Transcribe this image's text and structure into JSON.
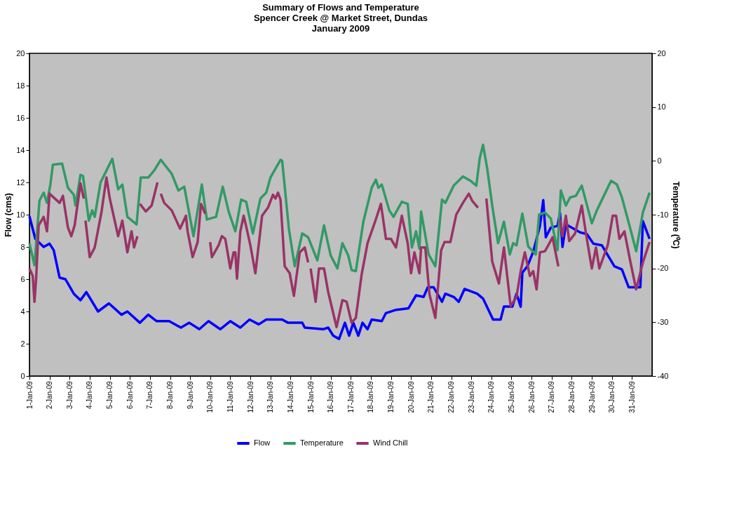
{
  "chart_data": {
    "type": "line",
    "title": [
      "Summary of Flows and Temperature",
      "Spencer Creek @ Market Street, Dundas",
      "January 2009"
    ],
    "ylabel": "Flow (cms)",
    "y2label": "Temperature (⁰C)",
    "xlim": [
      "2009-01-01",
      "2009-02-01"
    ],
    "xticks": [
      {
        "value": "2009-01-01",
        "label": "1-Jan-09"
      },
      {
        "value": "2009-01-02",
        "label": "2-Jan-09"
      },
      {
        "value": "2009-01-03",
        "label": "3-Jan-09"
      },
      {
        "value": "2009-01-04",
        "label": "4-Jan-09"
      },
      {
        "value": "2009-01-05",
        "label": "5-Jan-09"
      },
      {
        "value": "2009-01-06",
        "label": "6-Jan-09"
      },
      {
        "value": "2009-01-07",
        "label": "7-Jan-09"
      },
      {
        "value": "2009-01-08",
        "label": "8-Jan-09"
      },
      {
        "value": "2009-01-09",
        "label": "9-Jan-09"
      },
      {
        "value": "2009-01-10",
        "label": "10-Jan-09"
      },
      {
        "value": "2009-01-11",
        "label": "11-Jan-09"
      },
      {
        "value": "2009-01-12",
        "label": "12-Jan-09"
      },
      {
        "value": "2009-01-13",
        "label": "13-Jan-09"
      },
      {
        "value": "2009-01-14",
        "label": "14-Jan-09"
      },
      {
        "value": "2009-01-15",
        "label": "15-Jan-09"
      },
      {
        "value": "2009-01-16",
        "label": "16-Jan-09"
      },
      {
        "value": "2009-01-17",
        "label": "17-Jan-09"
      },
      {
        "value": "2009-01-18",
        "label": "18-Jan-09"
      },
      {
        "value": "2009-01-19",
        "label": "19-Jan-09"
      },
      {
        "value": "2009-01-20",
        "label": "20-Jan-09"
      },
      {
        "value": "2009-01-21",
        "label": "21-Jan-09"
      },
      {
        "value": "2009-01-22",
        "label": "22-Jan-09"
      },
      {
        "value": "2009-01-23",
        "label": "23-Jan-09"
      },
      {
        "value": "2009-01-24",
        "label": "24-Jan-09"
      },
      {
        "value": "2009-01-25",
        "label": "25-Jan-09"
      },
      {
        "value": "2009-01-26",
        "label": "26-Jan-09"
      },
      {
        "value": "2009-01-27",
        "label": "27-Jan-09"
      },
      {
        "value": "2009-01-28",
        "label": "28-Jan-09"
      },
      {
        "value": "2009-01-29",
        "label": "29-Jan-09"
      },
      {
        "value": "2009-01-30",
        "label": "30-Jan-09"
      },
      {
        "value": "2009-01-31",
        "label": "31-Jan-09"
      }
    ],
    "ylim": [
      0,
      20
    ],
    "yticks": [
      0,
      2,
      4,
      6,
      8,
      10,
      12,
      14,
      16,
      18,
      20
    ],
    "y2lim": [
      -40,
      20
    ],
    "y2ticks": [
      -40,
      -30,
      -20,
      -10,
      0,
      10,
      20
    ],
    "grid": false,
    "legend": "bottom",
    "marker": "none",
    "line_style": "solid",
    "series": [
      {
        "name": "Flow",
        "color": "#0000ff",
        "x": [
          "2009-01-01T00:00",
          "2009-01-01T07:00",
          "2009-01-01T17:00",
          "2009-01-02T00:00",
          "2009-01-02T05:00",
          "2009-01-02T12:00",
          "2009-01-02T19:00",
          "2009-01-03T05:00",
          "2009-01-03T13:00",
          "2009-01-03T20:00",
          "2009-01-04T10:00",
          "2009-01-04T23:00",
          "2009-01-05T14:00",
          "2009-01-05T21:00",
          "2009-01-06T12:00",
          "2009-01-06T22:00",
          "2009-01-07T08:00",
          "2009-01-07T23:00",
          "2009-01-08T13:00",
          "2009-01-08T23:00",
          "2009-01-09T11:00",
          "2009-01-09T22:00",
          "2009-01-10T12:00",
          "2009-01-11T00:00",
          "2009-01-11T12:00",
          "2009-01-11T23:00",
          "2009-01-12T10:00",
          "2009-01-12T19:00",
          "2009-01-13T14:00",
          "2009-01-13T21:00",
          "2009-01-14T14:00",
          "2009-01-14T17:00",
          "2009-01-15T15:00",
          "2009-01-15T21:00",
          "2009-01-16T03:00",
          "2009-01-16T10:00",
          "2009-01-16T17:00",
          "2009-01-16T22:00",
          "2009-01-17T03:00",
          "2009-01-17T09:00",
          "2009-01-17T14:00",
          "2009-01-17T20:00",
          "2009-01-18T01:00",
          "2009-01-18T13:00",
          "2009-01-18T18:00",
          "2009-01-19T06:00",
          "2009-01-19T21:00",
          "2009-01-20T06:00",
          "2009-01-20T15:00",
          "2009-01-20T20:00",
          "2009-01-21T03:00",
          "2009-01-21T13:00",
          "2009-01-21T17:00",
          "2009-01-22T03:00",
          "2009-01-22T09:00",
          "2009-01-22T16:00",
          "2009-01-23T07:00",
          "2009-01-23T14:00",
          "2009-01-24T02:00",
          "2009-01-24T11:00",
          "2009-01-24T15:00",
          "2009-01-25T01:00",
          "2009-01-25T06:00",
          "2009-01-25T11:00",
          "2009-01-25T13:00",
          "2009-01-25T19:00",
          "2009-01-26T02:00",
          "2009-01-26T07:00",
          "2009-01-26T10:00",
          "2009-01-26T14:00",
          "2009-01-26T17:00",
          "2009-01-26T23:00",
          "2009-01-27T07:00",
          "2009-01-27T10:00",
          "2009-01-27T13:00",
          "2009-01-27T17:00",
          "2009-01-28T10:00",
          "2009-01-28T18:00",
          "2009-01-29T02:00",
          "2009-01-29T12:00",
          "2009-01-30T03:00",
          "2009-01-30T12:00",
          "2009-01-30T20:00",
          "2009-01-31T10:00",
          "2009-01-31T13:00",
          "2009-01-31T21:00"
        ],
        "values": [
          9.9,
          8.5,
          8.0,
          8.2,
          7.8,
          6.1,
          6.0,
          5.1,
          4.7,
          5.2,
          4.0,
          4.5,
          3.8,
          4.0,
          3.3,
          3.8,
          3.4,
          3.4,
          3.0,
          3.3,
          2.9,
          3.4,
          2.9,
          3.4,
          3.0,
          3.5,
          3.2,
          3.5,
          3.5,
          3.3,
          3.3,
          3.0,
          2.9,
          3.0,
          2.5,
          2.3,
          3.3,
          2.5,
          3.3,
          2.5,
          3.3,
          2.9,
          3.5,
          3.4,
          3.9,
          4.1,
          4.2,
          5.0,
          4.9,
          5.5,
          5.5,
          4.6,
          5.1,
          4.9,
          4.6,
          5.4,
          5.1,
          4.8,
          3.5,
          3.5,
          4.3,
          4.3,
          5.1,
          4.3,
          6.4,
          6.8,
          7.7,
          8.7,
          9.3,
          10.9,
          8.6,
          9.2,
          9.3,
          10.1,
          8.0,
          9.4,
          8.9,
          8.8,
          8.2,
          8.1,
          6.8,
          6.6,
          5.5,
          5.5,
          9.6,
          8.5
        ]
      },
      {
        "name": "Temperature",
        "color": "#339966",
        "axis": "y2",
        "x": [
          "2009-01-01T00:00",
          "2009-01-01T06:00",
          "2009-01-01T12:00",
          "2009-01-01T17:00",
          "2009-01-01T21:00",
          "2009-01-02T01:00",
          "2009-01-02T04:00",
          "2009-01-02T15:00",
          "2009-01-02T22:00",
          "2009-01-03T05:00",
          "2009-01-03T07:00",
          "2009-01-03T13:00",
          "2009-01-03T16:00",
          "2009-01-03T23:00",
          "2009-01-04T03:00",
          "2009-01-04T06:00",
          "2009-01-04T13:00",
          "2009-01-04T20:00",
          "2009-01-05T03:00",
          "2009-01-05T10:00",
          "2009-01-05T15:00",
          "2009-01-05T21:00",
          "2009-01-06T08:00",
          "2009-01-06T13:00",
          "2009-01-06T22:00",
          "2009-01-07T05:00",
          "2009-01-07T13:00",
          "2009-01-08T02:00",
          "2009-01-08T10:00",
          "2009-01-08T17:00",
          "2009-01-09T04:00",
          "2009-01-09T14:00",
          "2009-01-09T20:00",
          "2009-01-10T07:00",
          "2009-01-10T15:00",
          "2009-01-10T22:00",
          "2009-01-11T06:00",
          "2009-01-11T13:00",
          "2009-01-11T19:00",
          "2009-01-12T03:00",
          "2009-01-12T12:00",
          "2009-01-12T19:00",
          "2009-01-13T00:00",
          "2009-01-13T12:00",
          "2009-01-13T14:00",
          "2009-01-13T22:00",
          "2009-01-14T05:00",
          "2009-01-14T14:00",
          "2009-01-14T21:00",
          "2009-01-15T08:00",
          "2009-01-15T16:00",
          "2009-01-16T00:00",
          "2009-01-16T08:00",
          "2009-01-16T14:00",
          "2009-01-16T21:00",
          "2009-01-17T01:00",
          "2009-01-17T06:00",
          "2009-01-17T15:00",
          "2009-01-18T01:00",
          "2009-01-18T06:00",
          "2009-01-18T09:00",
          "2009-01-18T13:00",
          "2009-01-18T22:00",
          "2009-01-19T03:00",
          "2009-01-19T13:00",
          "2009-01-19T20:00",
          "2009-01-20T01:00",
          "2009-01-20T06:00",
          "2009-01-20T10:00",
          "2009-01-20T12:00",
          "2009-01-20T21:00",
          "2009-01-21T05:00",
          "2009-01-21T13:00",
          "2009-01-21T17:00",
          "2009-01-22T03:00",
          "2009-01-22T14:00",
          "2009-01-22T23:00",
          "2009-01-23T06:00",
          "2009-01-23T10:00",
          "2009-01-23T14:00",
          "2009-01-23T19:00",
          "2009-01-24T01:00",
          "2009-01-24T08:00",
          "2009-01-24T15:00",
          "2009-01-24T22:00",
          "2009-01-25T02:00",
          "2009-01-25T06:00",
          "2009-01-25T13:00",
          "2009-01-25T20:00",
          "2009-01-26T05:00",
          "2009-01-26T09:00",
          "2009-01-26T16:00",
          "2009-01-26T23:00",
          "2009-01-27T07:00",
          "2009-01-27T11:00",
          "2009-01-27T17:00",
          "2009-01-27T22:00",
          "2009-01-28T05:00",
          "2009-01-28T12:00",
          "2009-01-29T00:00",
          "2009-01-29T06:00",
          "2009-01-29T15:00",
          "2009-01-29T23:00",
          "2009-01-30T06:00",
          "2009-01-30T12:00",
          "2009-01-30T22:00",
          "2009-01-31T05:00",
          "2009-01-31T13:00",
          "2009-01-31T21:00"
        ],
        "values": [
          -15.3,
          -19.4,
          -7.4,
          -5.9,
          -7.8,
          -4.4,
          -0.7,
          -0.5,
          -5.0,
          -6.3,
          -8.3,
          -2.6,
          -2.8,
          -11.1,
          -9.2,
          -10.4,
          -4.0,
          -1.8,
          0.4,
          -5.3,
          -4.4,
          -10.4,
          -11.8,
          -3.1,
          -3.1,
          -1.8,
          0.2,
          -2.4,
          -5.5,
          -4.8,
          -14.0,
          -4.4,
          -10.9,
          -10.4,
          -4.8,
          -9.4,
          -13.1,
          -7.2,
          -7.6,
          -13.5,
          -7.0,
          -5.9,
          -3.1,
          0.2,
          0.0,
          -12.6,
          -19.6,
          -13.5,
          -14.2,
          -18.5,
          -12.0,
          -17.6,
          -20.0,
          -15.3,
          -17.6,
          -20.3,
          -20.5,
          -11.3,
          -5.0,
          -3.5,
          -5.0,
          -4.4,
          -9.2,
          -10.4,
          -7.6,
          -8.0,
          -16.1,
          -13.1,
          -16.3,
          -9.4,
          -17.4,
          -19.6,
          -7.2,
          -7.8,
          -4.6,
          -2.9,
          -3.7,
          -4.6,
          0.4,
          3.0,
          -1.4,
          -8.3,
          -15.3,
          -11.3,
          -17.4,
          -15.3,
          -15.7,
          -9.8,
          -15.9,
          -17.4,
          -10.0,
          -9.6,
          -10.7,
          -16.6,
          -5.5,
          -8.3,
          -6.8,
          -6.5,
          -4.6,
          -11.6,
          -9.2,
          -6.3,
          -3.7,
          -4.4,
          -6.8,
          -12.6,
          -16.8,
          -9.6,
          -5.9
        ]
      },
      {
        "name": "Wind Chill",
        "color": "#993366",
        "axis": "y2",
        "x": [
          "2009-01-01T00:00",
          "2009-01-01T04:00",
          "2009-01-01T06:00",
          "2009-01-01T08:00",
          "2009-01-01T11:00",
          "2009-01-01T17:00",
          "2009-01-01T21:00",
          "2009-01-02T00:00",
          "2009-01-02T12:00",
          "2009-01-02T16:00",
          "2009-01-02T22:00",
          "2009-01-03T02:00",
          "2009-01-03T06:00",
          "2009-01-03T13:00",
          "2009-01-03T17:00",
          "2009-01-03T18:00",
          "2009-01-03T19:00",
          "2009-01-04T00:00",
          "2009-01-04T06:00",
          "2009-01-04T14:00",
          "2009-01-04T20:00",
          "2009-01-05T00:00",
          "2009-01-05T10:00",
          "2009-01-05T15:00",
          "2009-01-05T21:00",
          "2009-01-06T02:00",
          "2009-01-06T05:00",
          "2009-01-06T09:00",
          "2009-01-06T10:00",
          "2009-01-06T12:00",
          "2009-01-06T19:00",
          "2009-01-07T02:00",
          "2009-01-07T09:00",
          "2009-01-07T10:00",
          "2009-01-07T13:00",
          "2009-01-07T17:00",
          "2009-01-08T02:00",
          "2009-01-08T12:00",
          "2009-01-08T19:00",
          "2009-01-08T21:00",
          "2009-01-09T03:00",
          "2009-01-09T09:00",
          "2009-01-09T13:00",
          "2009-01-09T18:00",
          "2009-01-09T20:00",
          "2009-01-10T00:00",
          "2009-01-10T02:00",
          "2009-01-10T10:00",
          "2009-01-10T14:00",
          "2009-01-10T18:00",
          "2009-01-11T00:00",
          "2009-01-11T04:00",
          "2009-01-11T06:00",
          "2009-01-11T08:00",
          "2009-01-11T12:00",
          "2009-01-11T16:00",
          "2009-01-11T19:00",
          "2009-01-12T00:00",
          "2009-01-12T06:00",
          "2009-01-12T14:00",
          "2009-01-12T21:00",
          "2009-01-13T03:00",
          "2009-01-13T06:00",
          "2009-01-13T09:00",
          "2009-01-13T12:00",
          "2009-01-13T17:00",
          "2009-01-13T23:00",
          "2009-01-14T04:00",
          "2009-01-14T11:00",
          "2009-01-14T17:00",
          "2009-01-14T21:00",
          "2009-01-14T22:00",
          "2009-01-15T00:00",
          "2009-01-15T06:00",
          "2009-01-15T10:00",
          "2009-01-15T16:00",
          "2009-01-15T21:00",
          "2009-01-16T07:00",
          "2009-01-16T14:00",
          "2009-01-16T19:00",
          "2009-01-17T01:00",
          "2009-01-17T06:00",
          "2009-01-17T13:00",
          "2009-01-17T20:00",
          "2009-01-18T05:00",
          "2009-01-18T12:00",
          "2009-01-18T18:00",
          "2009-01-19T00:00",
          "2009-01-19T06:00",
          "2009-01-19T13:00",
          "2009-01-19T20:00",
          "2009-01-20T00:00",
          "2009-01-20T04:00",
          "2009-01-20T10:00",
          "2009-01-20T12:00",
          "2009-01-20T17:00",
          "2009-01-20T22:00",
          "2009-01-21T05:00",
          "2009-01-21T12:00",
          "2009-01-21T16:00",
          "2009-01-21T23:00",
          "2009-01-22T06:00",
          "2009-01-22T14:00",
          "2009-01-22T21:00",
          "2009-01-23T01:00",
          "2009-01-23T08:00",
          "2009-01-23T12:00",
          "2009-01-23T18:00",
          "2009-01-24T01:00",
          "2009-01-24T09:00",
          "2009-01-24T15:00",
          "2009-01-24T23:00",
          "2009-01-25T06:00",
          "2009-01-25T11:00",
          "2009-01-25T16:00",
          "2009-01-25T22:00",
          "2009-01-26T02:00",
          "2009-01-26T06:00",
          "2009-01-26T10:00",
          "2009-01-26T16:00",
          "2009-01-26T20:00",
          "2009-01-27T01:00",
          "2009-01-27T08:00",
          "2009-01-27T09:00",
          "2009-01-27T10:00",
          "2009-01-27T13:00",
          "2009-01-27T17:00",
          "2009-01-27T21:00",
          "2009-01-28T04:00",
          "2009-01-28T12:00",
          "2009-01-28T17:00",
          "2009-01-29T00:00",
          "2009-01-29T05:00",
          "2009-01-29T09:00",
          "2009-01-29T19:00",
          "2009-01-30T01:00",
          "2009-01-30T05:00",
          "2009-01-30T09:00",
          "2009-01-30T15:00",
          "2009-01-30T22:00",
          "2009-01-31T05:00",
          "2009-01-31T13:00",
          "2009-01-31T21:00"
        ],
        "values": [
          -20.0,
          -21.4,
          -26.2,
          -21.9,
          -12.0,
          -10.4,
          -13.1,
          -6.1,
          -7.8,
          -6.5,
          -12.4,
          -14.0,
          -12.0,
          -4.2,
          -7.0,
          null,
          -11.1,
          -17.9,
          -16.1,
          -9.6,
          -3.1,
          -7.0,
          -14.0,
          -11.1,
          -17.0,
          -13.1,
          -16.1,
          -14.0,
          null,
          -8.0,
          -9.4,
          -8.3,
          -4.0,
          null,
          -6.1,
          -7.8,
          -9.2,
          -12.6,
          -10.2,
          -13.1,
          -17.9,
          -15.1,
          -8.0,
          -9.8,
          null,
          -15.1,
          -17.9,
          -15.7,
          -14.0,
          -14.5,
          -20.0,
          -17.0,
          -17.0,
          -21.9,
          -13.1,
          -10.2,
          -12.2,
          -15.7,
          -20.9,
          -10.2,
          -8.7,
          -6.3,
          -7.0,
          -5.9,
          -7.2,
          -19.6,
          -20.9,
          -25.1,
          -17.0,
          -16.1,
          -18.9,
          null,
          -20.0,
          -26.2,
          -20.0,
          -20.0,
          -24.4,
          -30.9,
          -25.9,
          -26.2,
          -30.1,
          -29.2,
          -21.1,
          -15.3,
          -11.3,
          -8.0,
          -14.5,
          -14.5,
          -16.1,
          -10.2,
          -15.3,
          -20.9,
          -17.0,
          -20.9,
          -16.1,
          -16.1,
          -24.8,
          -29.2,
          -16.6,
          -15.1,
          -15.1,
          -10.0,
          -7.8,
          -6.1,
          -7.4,
          -8.7,
          null,
          -7.0,
          -18.7,
          -22.8,
          -16.1,
          -27.0,
          -25.3,
          -20.5,
          -17.0,
          -21.4,
          -20.5,
          -23.9,
          -17.0,
          -16.8,
          -15.7,
          -14.2,
          -19.6,
          null,
          -10.9,
          -14.0,
          -10.2,
          -14.9,
          -13.5,
          -8.3,
          -13.5,
          -20.0,
          -16.1,
          -20.0,
          -15.7,
          -10.2,
          -10.2,
          -14.5,
          -13.1,
          -18.7,
          -23.9,
          -18.9,
          -15.1
        ]
      }
    ]
  }
}
